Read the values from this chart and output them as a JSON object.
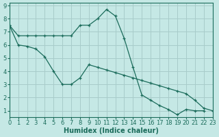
{
  "xlabel": "Humidex (Indice chaleur)",
  "xlim": [
    0,
    23
  ],
  "ylim": [
    0.5,
    9.2
  ],
  "yticks": [
    1,
    2,
    3,
    4,
    5,
    6,
    7,
    8,
    9
  ],
  "xticks": [
    0,
    1,
    2,
    3,
    4,
    5,
    6,
    7,
    8,
    9,
    10,
    11,
    12,
    13,
    14,
    15,
    16,
    17,
    18,
    19,
    20,
    21,
    22,
    23
  ],
  "bg_color": "#c5e8e5",
  "grid_color": "#a8ccca",
  "line_color": "#1a6b5a",
  "series1_x": [
    0,
    1,
    2,
    3,
    4,
    5,
    6,
    7,
    8,
    9,
    10,
    11,
    12,
    13,
    14,
    15,
    16,
    17,
    18,
    19,
    20,
    21,
    22,
    23
  ],
  "series1_y": [
    7.5,
    6.7,
    6.7,
    6.7,
    6.7,
    6.7,
    6.7,
    6.7,
    7.5,
    7.5,
    8.0,
    8.7,
    8.2,
    6.5,
    4.3,
    2.2,
    1.8,
    1.4,
    1.1,
    0.7,
    1.1,
    1.0,
    1.0,
    null
  ],
  "series2_x": [
    0,
    1,
    2,
    3,
    4,
    5,
    6,
    7,
    8,
    9,
    10,
    11,
    12,
    13,
    14,
    15,
    16,
    17,
    18,
    19,
    20,
    21,
    22,
    23
  ],
  "series2_y": [
    7.5,
    6.0,
    5.9,
    5.7,
    5.1,
    4.0,
    3.0,
    3.0,
    3.5,
    4.5,
    4.3,
    4.1,
    3.9,
    3.7,
    3.5,
    3.3,
    3.1,
    2.9,
    2.7,
    2.5,
    2.3,
    1.8,
    1.2,
    1.0
  ],
  "tick_fontsize": 6,
  "xlabel_fontsize": 7
}
